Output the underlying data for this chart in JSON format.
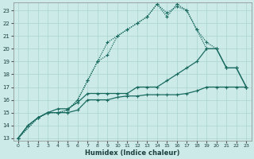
{
  "xlabel": "Humidex (Indice chaleur)",
  "bg_color": "#cceae8",
  "grid_color": "#aad4d0",
  "line_color": "#1a6b60",
  "xlim": [
    -0.5,
    23.5
  ],
  "ylim": [
    12.8,
    23.6
  ],
  "xticks": [
    0,
    1,
    2,
    3,
    4,
    5,
    6,
    7,
    8,
    9,
    10,
    11,
    12,
    13,
    14,
    15,
    16,
    17,
    18,
    19,
    20,
    21,
    22,
    23
  ],
  "yticks": [
    13,
    14,
    15,
    16,
    17,
    18,
    19,
    20,
    21,
    22,
    23
  ],
  "line1_x": [
    0,
    1,
    2,
    3,
    4,
    5,
    6,
    7,
    8,
    9,
    10,
    11,
    12,
    13,
    14,
    15,
    16,
    17,
    18,
    19,
    20,
    21,
    22,
    23
  ],
  "line1_y": [
    13,
    14,
    14.6,
    15,
    15,
    15,
    15.2,
    16,
    16,
    16,
    16.2,
    16.3,
    16.3,
    16.4,
    16.4,
    16.4,
    16.4,
    16.5,
    16.7,
    17,
    17,
    17,
    17,
    17
  ],
  "line2_x": [
    0,
    1,
    2,
    3,
    4,
    5,
    6,
    7,
    8,
    9,
    10,
    11,
    12,
    13,
    14,
    15,
    16,
    17,
    18,
    19,
    20,
    21,
    22,
    23
  ],
  "line2_y": [
    13,
    14,
    14.6,
    15,
    15.3,
    15.3,
    15.8,
    16.5,
    16.5,
    16.5,
    16.5,
    16.5,
    17,
    17,
    17,
    17.5,
    18,
    18.5,
    19,
    20,
    20,
    18.5,
    18.5,
    17
  ],
  "line3_x": [
    0,
    2,
    3,
    4,
    5,
    6,
    7,
    8,
    9,
    10,
    11,
    12,
    13,
    14,
    15,
    16,
    17,
    18,
    19,
    20,
    21,
    22,
    23
  ],
  "line3_y": [
    13,
    14.6,
    15,
    15,
    15.2,
    16,
    17.5,
    19,
    20.5,
    21,
    21.5,
    22,
    22.5,
    23.5,
    22.5,
    23.5,
    23,
    21.5,
    20.5,
    20,
    18.5,
    18.5,
    17
  ],
  "line4_x": [
    0,
    2,
    3,
    4,
    5,
    6,
    7,
    8,
    9,
    10,
    11,
    12,
    13,
    14,
    15,
    16,
    17,
    18,
    19,
    20,
    21,
    22,
    23
  ],
  "line4_y": [
    13,
    14.6,
    15,
    15,
    15.2,
    16,
    17.5,
    19,
    19.5,
    21,
    21.5,
    22,
    22.5,
    23.5,
    22.8,
    23.3,
    23,
    21.5,
    20,
    20,
    18.5,
    18.5,
    17
  ]
}
